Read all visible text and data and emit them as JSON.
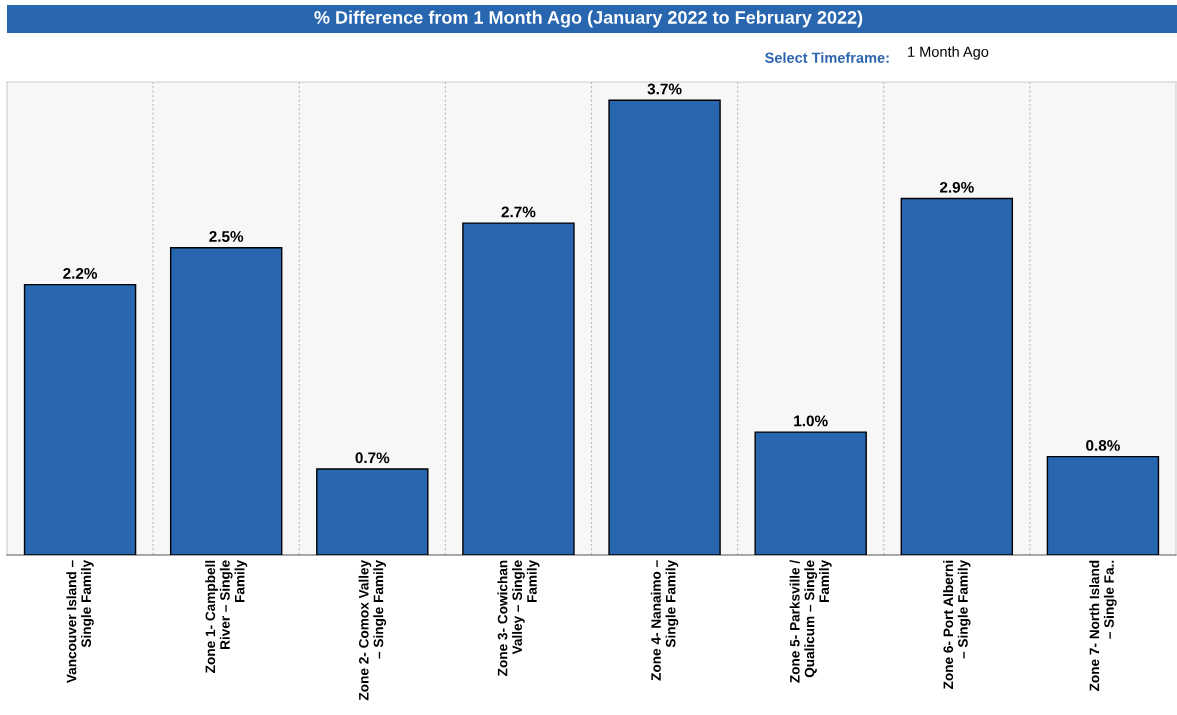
{
  "chart_data": {
    "type": "bar",
    "title": "% Difference from 1 Month Ago (January 2022 to February 2022)",
    "categories": [
      "Vancouver Island – Single Family",
      "Zone 1- Campbell River – Single Family",
      "Zone 2- Comox Valley – Single Family",
      "Zone 3- Cowichan Valley – Single Family",
      "Zone 4- Nanaimo – Single Family",
      "Zone 5- Parksville / Qualicum – Single Family",
      "Zone 6- Port Alberni – Single Family",
      "Zone 7- North Island – Single Fa.."
    ],
    "values": [
      2.2,
      2.5,
      0.7,
      2.7,
      3.7,
      1.0,
      2.9,
      0.8
    ],
    "value_labels": [
      "2.2%",
      "2.5%",
      "0.7%",
      "2.7%",
      "3.7%",
      "1.0%",
      "2.9%",
      "0.8%"
    ],
    "color": "#2866b0",
    "grid": "x",
    "annotations": [
      "Select Timeframe:",
      "1 Month Ago"
    ]
  }
}
